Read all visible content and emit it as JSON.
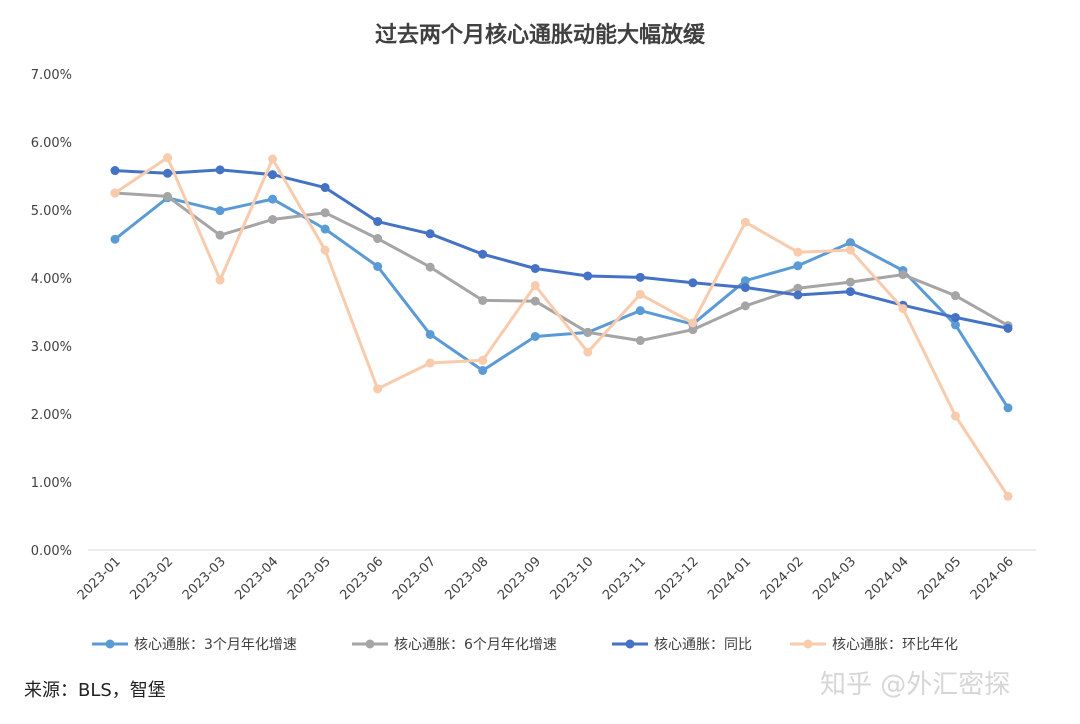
{
  "chart_data": {
    "type": "line",
    "title": "过去两个月核心通胀动能大幅放缓",
    "categories": [
      "2023-01",
      "2023-02",
      "2023-03",
      "2023-04",
      "2023-05",
      "2023-06",
      "2023-07",
      "2023-08",
      "2023-09",
      "2023-10",
      "2023-11",
      "2023-12",
      "2024-01",
      "2024-02",
      "2024-03",
      "2024-04",
      "2024-05",
      "2024-06"
    ],
    "y_ticks": [
      "0.00%",
      "1.00%",
      "2.00%",
      "3.00%",
      "4.00%",
      "5.00%",
      "6.00%",
      "7.00%"
    ],
    "ylim": [
      0,
      7
    ],
    "grid": false,
    "legend_position": "bottom",
    "series": [
      {
        "name": "核心通胀：3个月年化增速",
        "color": "#5b9bd5",
        "values": [
          4.57,
          5.18,
          4.99,
          5.16,
          4.72,
          4.17,
          3.17,
          2.64,
          3.14,
          3.2,
          3.52,
          3.32,
          3.96,
          4.18,
          4.52,
          4.11,
          3.31,
          2.09
        ]
      },
      {
        "name": "核心通胀：6个月年化增速",
        "color": "#a5a5a5",
        "values": [
          5.25,
          5.2,
          4.63,
          4.86,
          4.96,
          4.58,
          4.16,
          3.67,
          3.66,
          3.2,
          3.08,
          3.24,
          3.59,
          3.85,
          3.94,
          4.05,
          3.74,
          3.3
        ]
      },
      {
        "name": "核心通胀：同比",
        "color": "#4472c4",
        "values": [
          5.58,
          5.54,
          5.59,
          5.52,
          5.33,
          4.83,
          4.65,
          4.35,
          4.14,
          4.03,
          4.01,
          3.93,
          3.86,
          3.75,
          3.8,
          3.6,
          3.42,
          3.26
        ]
      },
      {
        "name": "核心通胀：环比年化",
        "color": "#f8cbad",
        "values": [
          5.25,
          5.77,
          3.97,
          5.75,
          4.41,
          2.37,
          2.75,
          2.79,
          3.89,
          2.91,
          3.76,
          3.34,
          4.82,
          4.38,
          4.41,
          3.55,
          1.97,
          0.79
        ]
      }
    ]
  },
  "footer": {
    "source": "来源：BLS，智堡",
    "watermark": "知乎 @外汇密探"
  }
}
